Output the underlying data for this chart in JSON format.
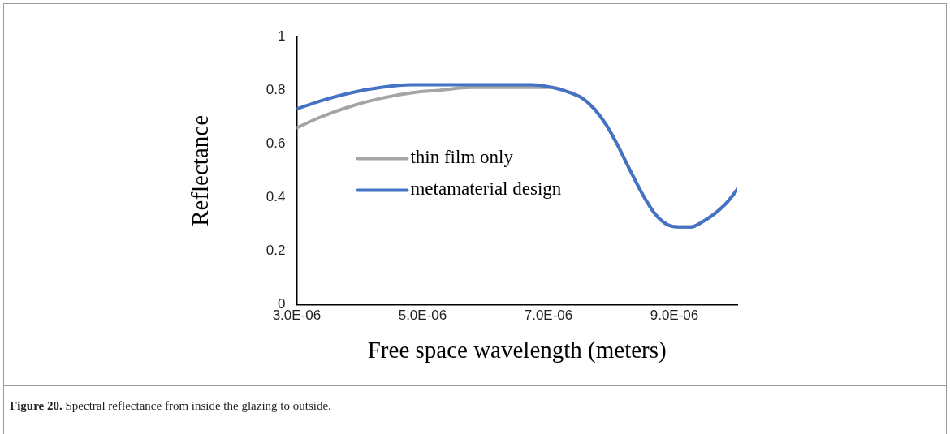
{
  "chart_data": {
    "type": "line",
    "xlabel": "Free space wavelength (meters)",
    "ylabel": "Reflectance",
    "xlim": [
      3e-06,
      1e-05
    ],
    "xticks": [
      {
        "value": 3e-06,
        "label": "3.0E-06"
      },
      {
        "value": 5e-06,
        "label": "5.0E-06"
      },
      {
        "value": 7e-06,
        "label": "7.0E-06"
      },
      {
        "value": 9e-06,
        "label": "9.0E-06"
      }
    ],
    "ylim": [
      0,
      1
    ],
    "yticks": [
      0,
      0.2,
      0.4,
      0.6,
      0.8,
      1
    ],
    "grid": false,
    "legend": "left",
    "marker": "none",
    "line_style": "solid",
    "annotations": [
      "Figure 20. Spectral reflectance from inside the glazing to outside."
    ],
    "series": [
      {
        "name": "thin film only",
        "color": "#a5a5a5",
        "x": [
          3e-06,
          3.38e-06,
          3.86e-06,
          4.34e-06,
          4.82e-06,
          5.29e-06,
          5.77e-06,
          6.25e-06,
          6.73e-06,
          7.06e-06,
          7.35e-06,
          7.54e-06,
          7.73e-06,
          7.92e-06,
          8.11e-06,
          8.3e-06,
          8.5e-06,
          8.69e-06,
          8.88e-06,
          9.07e-06,
          9.26e-06,
          9.45e-06,
          9.64e-06,
          9.83e-06,
          1e-05
        ],
        "values": [
          0.66,
          0.7,
          0.74,
          0.77,
          0.79,
          0.8,
          0.81,
          0.81,
          0.81,
          0.81,
          0.79,
          0.77,
          0.73,
          0.67,
          0.59,
          0.5,
          0.41,
          0.34,
          0.3,
          0.29,
          0.29,
          0.31,
          0.34,
          0.38,
          0.43
        ]
      },
      {
        "name": "metamaterial design",
        "color": "#4472c4",
        "x": [
          3e-06,
          3.38e-06,
          3.86e-06,
          4.34e-06,
          4.82e-06,
          5.29e-06,
          5.77e-06,
          6.25e-06,
          6.73e-06,
          7.06e-06,
          7.35e-06,
          7.54e-06,
          7.73e-06,
          7.92e-06,
          8.11e-06,
          8.3e-06,
          8.5e-06,
          8.69e-06,
          8.88e-06,
          9.07e-06,
          9.26e-06,
          9.45e-06,
          9.64e-06,
          9.83e-06,
          1e-05
        ],
        "values": [
          0.73,
          0.76,
          0.79,
          0.81,
          0.82,
          0.82,
          0.82,
          0.82,
          0.82,
          0.81,
          0.79,
          0.77,
          0.73,
          0.67,
          0.59,
          0.5,
          0.41,
          0.34,
          0.3,
          0.29,
          0.29,
          0.31,
          0.34,
          0.38,
          0.43
        ]
      }
    ]
  }
}
